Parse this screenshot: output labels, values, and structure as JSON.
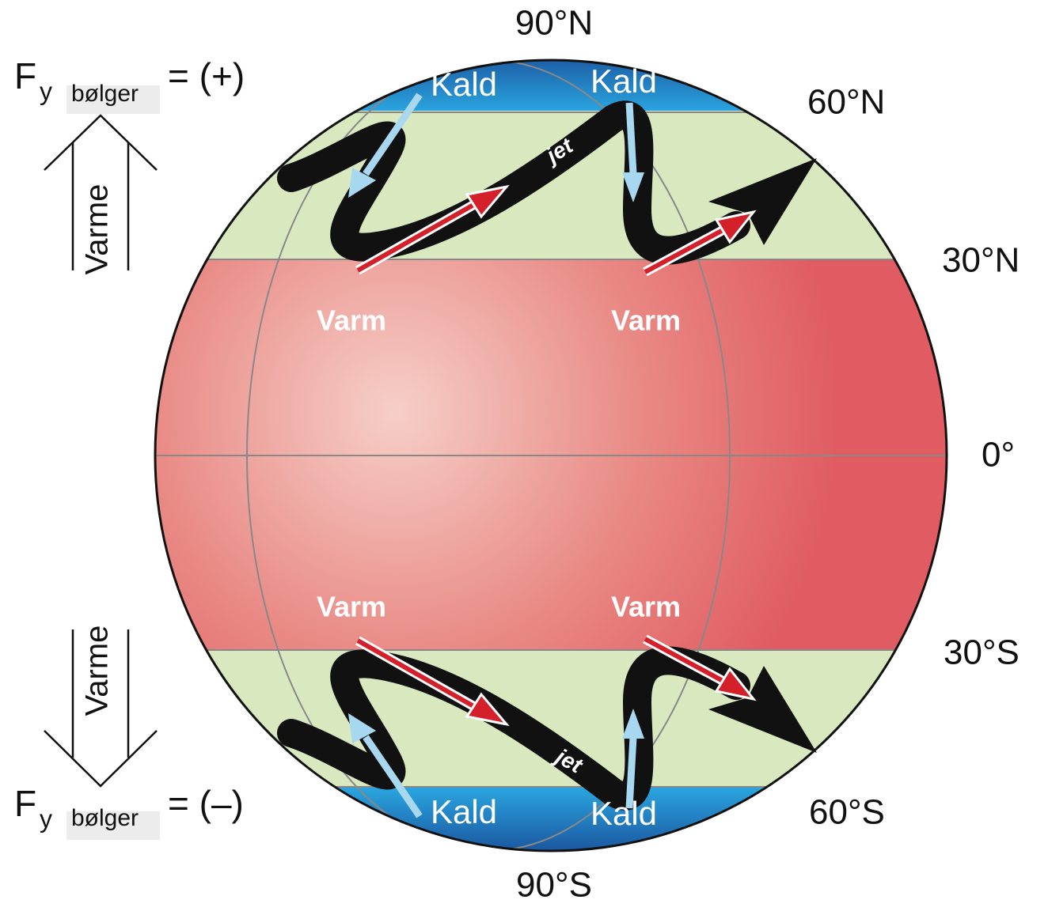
{
  "latitude_labels": [
    "90°N",
    "60°N",
    "30°N",
    "0°",
    "30°S",
    "60°S",
    "90°S"
  ],
  "north": {
    "cold_labels": [
      "Kald",
      "Kald"
    ],
    "warm_labels": [
      "Varm",
      "Varm"
    ],
    "jet_label": "jet",
    "flux": {
      "symbol": "F",
      "subscript": "y",
      "wave": "bølger",
      "sign": "= (+)"
    },
    "heat_label": "Varme"
  },
  "south": {
    "cold_labels": [
      "Kald",
      "Kald"
    ],
    "warm_labels": [
      "Varm",
      "Varm"
    ],
    "jet_label": "jet",
    "flux": {
      "symbol": "F",
      "subscript": "y",
      "wave": "bølger",
      "sign": "= (–)"
    },
    "heat_label": "Varme"
  }
}
